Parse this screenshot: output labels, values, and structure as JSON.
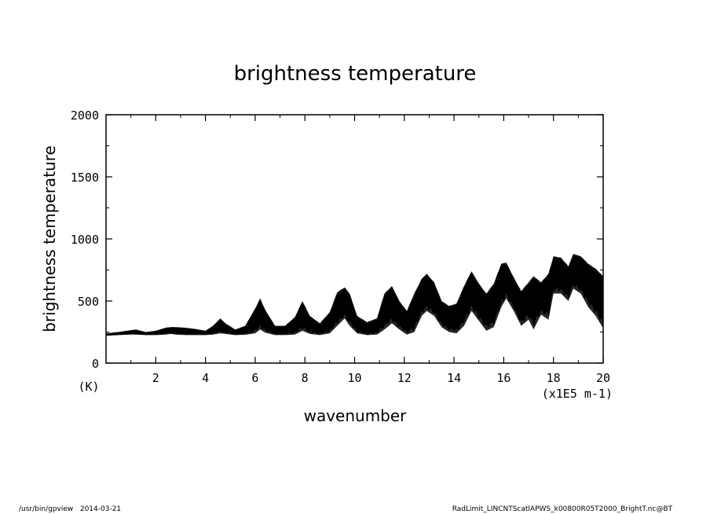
{
  "chart_data": {
    "type": "line",
    "title": "brightness temperature",
    "xlabel": "wavenumber",
    "ylabel": "brightness temperature",
    "y_unit": "(K)",
    "x_unit": "(x1E5 m-1)",
    "xlim": [
      0,
      20
    ],
    "ylim": [
      0,
      2000
    ],
    "x_ticks": [
      2,
      4,
      6,
      8,
      10,
      12,
      14,
      16,
      18,
      20
    ],
    "y_ticks": [
      0,
      500,
      1000,
      1500,
      2000
    ],
    "grid": false,
    "legend": "none",
    "line_color": "#000000",
    "series": [
      {
        "x": [
          0,
          0.5,
          1.0,
          1.2,
          1.6,
          2.0,
          2.4,
          2.6,
          2.8,
          3.2,
          3.6,
          4.0,
          4.3,
          4.6,
          4.8,
          5.2,
          5.6,
          6.0,
          6.2,
          6.4,
          6.8,
          7.2,
          7.6,
          7.9,
          8.2,
          8.6,
          9.0,
          9.3,
          9.6,
          9.8,
          10.1,
          10.5,
          10.9,
          11.2,
          11.5,
          11.8,
          12.1,
          12.4,
          12.7,
          12.9,
          13.2,
          13.5,
          13.8,
          14.1,
          14.4,
          14.7,
          15.0,
          15.3,
          15.6,
          15.9,
          16.1,
          16.4,
          16.7,
          17.0,
          17.2,
          17.5,
          17.8,
          18.0,
          18.3,
          18.6,
          18.8,
          19.1,
          19.4,
          19.7,
          20.0
        ],
        "y_upper": [
          240,
          250,
          265,
          270,
          250,
          260,
          285,
          290,
          290,
          285,
          275,
          260,
          300,
          360,
          320,
          270,
          300,
          440,
          520,
          430,
          300,
          300,
          370,
          500,
          380,
          320,
          410,
          570,
          610,
          560,
          380,
          330,
          360,
          560,
          620,
          500,
          420,
          560,
          680,
          720,
          650,
          500,
          460,
          480,
          620,
          740,
          640,
          560,
          640,
          800,
          810,
          690,
          580,
          650,
          700,
          650,
          720,
          860,
          850,
          780,
          880,
          860,
          800,
          760,
          700
        ],
        "y_lower": [
          220,
          225,
          230,
          230,
          225,
          225,
          230,
          235,
          230,
          225,
          225,
          225,
          230,
          240,
          235,
          225,
          228,
          240,
          270,
          245,
          225,
          225,
          230,
          260,
          235,
          225,
          240,
          300,
          360,
          300,
          240,
          225,
          230,
          270,
          320,
          270,
          230,
          250,
          380,
          420,
          380,
          290,
          250,
          240,
          300,
          420,
          340,
          260,
          290,
          450,
          520,
          420,
          300,
          350,
          270,
          390,
          350,
          560,
          560,
          500,
          600,
          560,
          450,
          380,
          280
        ]
      }
    ]
  },
  "footer": {
    "left": "/usr/bin/gpview   2014-03-21",
    "right": "RadLimit_LINCNTScatlAPWS_k00800R05T2000_BrightT.nc@BT"
  }
}
